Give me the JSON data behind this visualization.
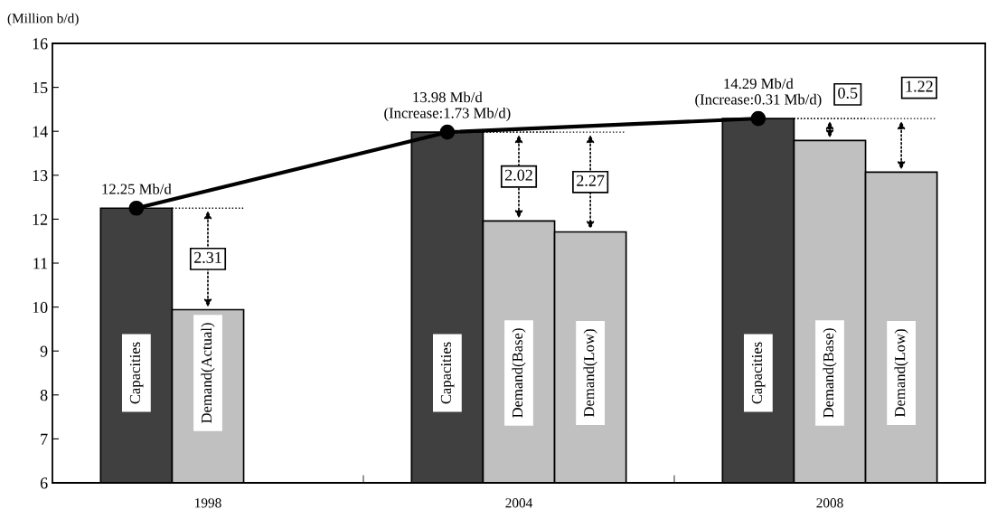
{
  "chart_data": {
    "type": "bar",
    "ylabel": "(Million b/d)",
    "categories": [
      "1998",
      "2004",
      "2008"
    ],
    "series": [
      {
        "color": "#404040",
        "values": [
          12.25,
          13.98,
          14.29
        ],
        "value_labels": [
          "Capacities",
          "Capacities",
          "Capacities"
        ]
      },
      {
        "color": "#c0c0c0",
        "values": [
          9.94,
          11.96,
          13.79
        ],
        "value_labels": [
          "Demand(Actual)",
          "Demand(Base)",
          "Demand(Base)"
        ]
      },
      {
        "color": "#c0c0c0",
        "values": [
          null,
          11.71,
          13.07
        ],
        "value_labels": [
          null,
          "Demand(Low)",
          "Demand(Low)"
        ]
      },
      {
        "type": "line",
        "color": "#000000",
        "marker": "circle",
        "values": [
          12.25,
          13.98,
          14.29
        ],
        "value_labels": [
          "12.25 Mb/d",
          "13.98 Mb/d\n(Increase:1.73 Mb/d)",
          "14.29 Mb/d\n(Increase:0.31 Mb/d)"
        ]
      }
    ],
    "annotations": [
      "2.31",
      "2.02",
      "2.27",
      "0.5",
      "1.22"
    ],
    "ylim": [
      6,
      16
    ],
    "yticks": [
      6,
      7,
      8,
      9,
      10,
      11,
      12,
      13,
      14,
      15,
      16
    ],
    "grid": false,
    "legend": false
  }
}
